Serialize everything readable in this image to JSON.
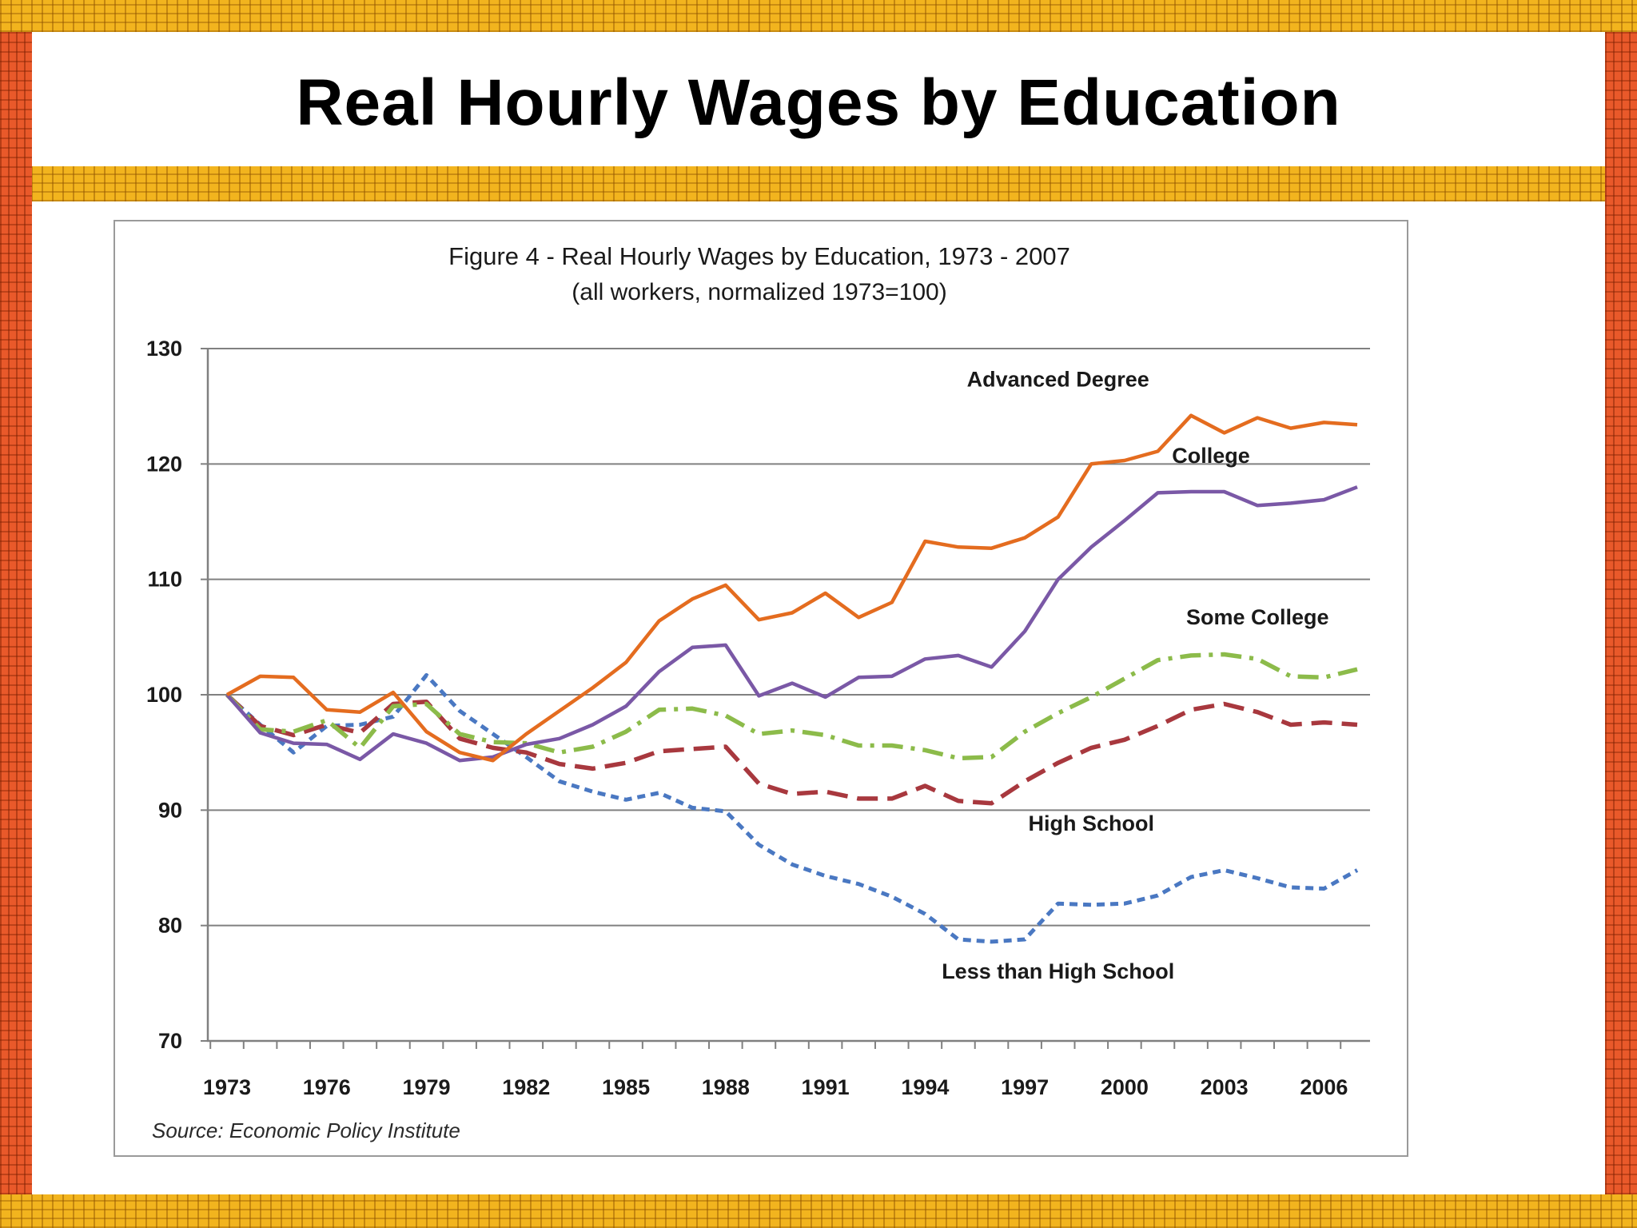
{
  "slide": {
    "title": "Real Hourly Wages by Education"
  },
  "chart_data": {
    "type": "line",
    "title": "Figure 4 - Real Hourly Wages by Education, 1973 - 2007",
    "subtitle": "(all workers, normalized 1973=100)",
    "source": "Source: Economic Policy Institute",
    "xlabel": "",
    "ylabel": "",
    "xlim": [
      1973,
      2007
    ],
    "ylim": [
      70,
      130
    ],
    "y_ticks": [
      70,
      80,
      90,
      100,
      110,
      120,
      130
    ],
    "x_tick_labels": [
      "1973",
      "1976",
      "1979",
      "1982",
      "1985",
      "1988",
      "1991",
      "1994",
      "1997",
      "2000",
      "2003",
      "2006"
    ],
    "grid": "horizontal",
    "legend": "none (series labeled directly on the plot)",
    "x": [
      1973,
      1974,
      1975,
      1976,
      1977,
      1978,
      1979,
      1980,
      1981,
      1982,
      1983,
      1984,
      1985,
      1986,
      1987,
      1988,
      1989,
      1990,
      1991,
      1992,
      1993,
      1994,
      1995,
      1996,
      1997,
      1998,
      1999,
      2000,
      2001,
      2002,
      2003,
      2004,
      2005,
      2006,
      2007
    ],
    "series": [
      {
        "name": "Advanced Degree",
        "color": "#e46c1f",
        "style": "solid",
        "values": [
          100,
          101.6,
          101.5,
          98.7,
          98.5,
          100.2,
          96.8,
          95.0,
          94.3,
          96.6,
          98.6,
          100.6,
          102.8,
          106.4,
          108.3,
          109.5,
          106.5,
          107.1,
          108.8,
          106.7,
          108.0,
          113.3,
          112.8,
          112.7,
          113.6,
          115.4,
          120.0,
          120.3,
          121.1,
          124.2,
          122.7,
          124.0,
          123.1,
          123.6,
          123.4
        ]
      },
      {
        "name": "College",
        "color": "#7a58a6",
        "style": "solid",
        "values": [
          100,
          96.7,
          95.8,
          95.7,
          94.4,
          96.6,
          95.8,
          94.3,
          94.6,
          95.7,
          96.2,
          97.4,
          99.0,
          102.0,
          104.1,
          104.3,
          99.9,
          101.0,
          99.8,
          101.5,
          101.6,
          103.1,
          103.4,
          102.4,
          105.5,
          110.0,
          112.8,
          115.1,
          117.5,
          117.6,
          117.6,
          116.4,
          116.6,
          116.9,
          118.0
        ]
      },
      {
        "name": "Some College",
        "color": "#8cbb4a",
        "style": "dashdot",
        "values": [
          100,
          97.0,
          96.8,
          97.8,
          95.4,
          99.0,
          99.2,
          96.6,
          95.9,
          95.8,
          95.0,
          95.5,
          96.8,
          98.7,
          98.8,
          98.2,
          96.6,
          96.9,
          96.5,
          95.6,
          95.6,
          95.2,
          94.5,
          94.6,
          96.8,
          98.4,
          99.8,
          101.4,
          103.0,
          103.4,
          103.5,
          103.1,
          101.6,
          101.5,
          102.2
        ]
      },
      {
        "name": "High School",
        "color": "#a8383e",
        "style": "dashed",
        "values": [
          100,
          97.3,
          96.5,
          97.4,
          96.7,
          99.2,
          99.4,
          96.2,
          95.4,
          95.0,
          94.0,
          93.6,
          94.1,
          95.1,
          95.3,
          95.5,
          92.3,
          91.4,
          91.6,
          91.0,
          91.0,
          92.1,
          90.8,
          90.6,
          92.5,
          94.1,
          95.4,
          96.1,
          97.3,
          98.7,
          99.2,
          98.5,
          97.4,
          97.6,
          97.4
        ]
      },
      {
        "name": "Less than High School",
        "color": "#4a78c2",
        "style": "dotted",
        "values": [
          100,
          97.4,
          95.0,
          97.3,
          97.4,
          98.1,
          101.7,
          98.6,
          96.6,
          94.6,
          92.5,
          91.6,
          90.9,
          91.5,
          90.2,
          89.9,
          87.0,
          85.3,
          84.3,
          83.6,
          82.5,
          81.0,
          78.8,
          78.6,
          78.8,
          81.9,
          81.8,
          81.9,
          82.6,
          84.2,
          84.8,
          84.1,
          83.3,
          83.2,
          84.8
        ]
      }
    ]
  }
}
